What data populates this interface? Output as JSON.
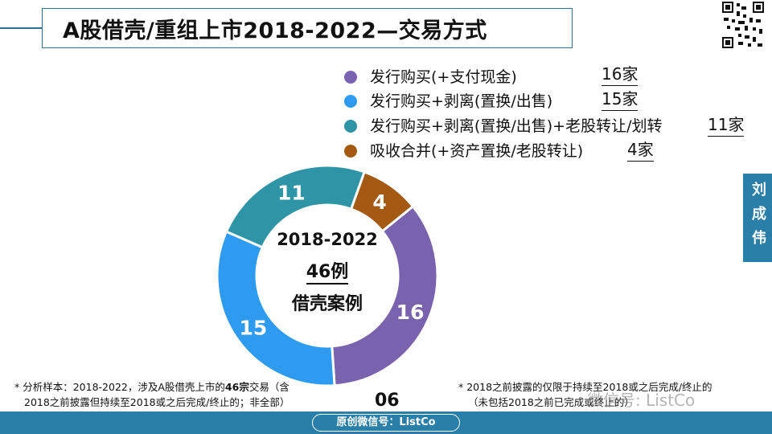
{
  "title": "A股借壳/重组上市2018-2022—交易方式",
  "side_tab": "刘成伟",
  "legend": [
    {
      "label": "发行购买(+支付现金)",
      "count": "16家",
      "color": "#7a63ae"
    },
    {
      "label": "发行购买+剥离(置换/出售)",
      "count": "15家",
      "color": "#2f9bf0"
    },
    {
      "label": "发行购买+剥离(置换/出售)+老股转让/划转",
      "count": "11家",
      "color": "#2e94a6"
    },
    {
      "label": "吸收合并(+资产置换/老股转让)",
      "count": "4家",
      "color": "#a55a14"
    }
  ],
  "center": {
    "line1": "2018-2022",
    "line2": "46例",
    "line3": "借壳案例"
  },
  "chart_data": {
    "type": "pie",
    "donut": true,
    "categories": [
      "发行购买(+支付现金)",
      "发行购买+剥离(置换/出售)",
      "发行购买+剥离(置换/出售)+老股转让/划转",
      "吸收合并(+资产置换/老股转让)"
    ],
    "values": [
      16,
      15,
      11,
      4
    ],
    "data_labels": [
      "16",
      "15",
      "11",
      "4"
    ],
    "colors": [
      "#7a63ae",
      "#2f9bf0",
      "#2e94a6",
      "#a55a14"
    ],
    "total": 46
  },
  "footnote_left": {
    "line1_prefix": "* 分析样本：2018-2022，涉及A股借壳上市的",
    "line1_bold": "46宗",
    "line1_suffix": "交易（含",
    "line2": "2018之前披露但持续至2018或之后完成/终止的；非全部）"
  },
  "footnote_right": {
    "line1": "* 2018之前披露的仅限于持续至2018或之后完成/终止的",
    "line2": "（未包括2018之前已完成或终止的）"
  },
  "page_number": "06",
  "bottom_label": "原创微信号：ListCo",
  "watermark": "微信号: ListCo"
}
